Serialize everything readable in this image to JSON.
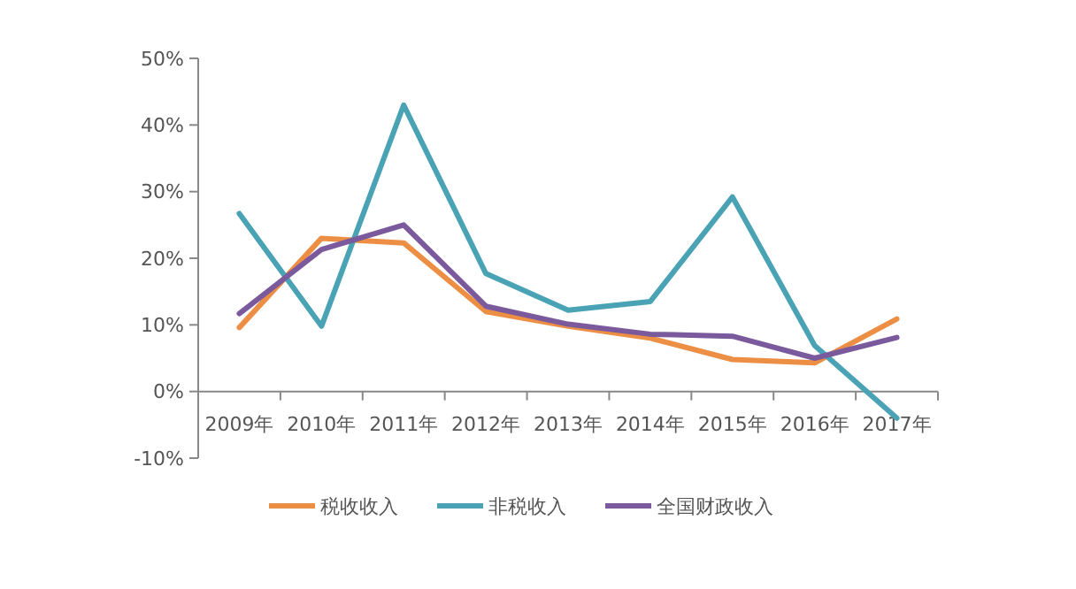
{
  "chart_data": {
    "type": "line",
    "categories": [
      "2009年",
      "2010年",
      "2011年",
      "2012年",
      "2013年",
      "2014年",
      "2015年",
      "2016年",
      "2017年"
    ],
    "series": [
      {
        "name": "税收收入",
        "color": "#ed8e45",
        "values": [
          9.6,
          23.0,
          22.3,
          12.0,
          9.8,
          8.0,
          4.8,
          4.3,
          10.9
        ]
      },
      {
        "name": "非税收入",
        "color": "#4aa3b5",
        "values": [
          26.7,
          9.8,
          43.0,
          17.7,
          12.2,
          13.5,
          29.2,
          6.9,
          -4.0
        ]
      },
      {
        "name": "全国财政收入",
        "color": "#7a5a9c",
        "values": [
          11.7,
          21.3,
          25.0,
          12.8,
          10.1,
          8.6,
          8.3,
          5.0,
          8.1
        ]
      }
    ],
    "ylim": [
      -10,
      50
    ],
    "yticks": [
      {
        "value": -10,
        "label": "-10%"
      },
      {
        "value": 0,
        "label": "0%"
      },
      {
        "value": 10,
        "label": "10%"
      },
      {
        "value": 20,
        "label": "20%"
      },
      {
        "value": 30,
        "label": "30%"
      },
      {
        "value": 40,
        "label": "40%"
      },
      {
        "value": 50,
        "label": "50%"
      }
    ],
    "grid": false,
    "legend": "bottom",
    "marker": "none",
    "line_style": "solid"
  }
}
